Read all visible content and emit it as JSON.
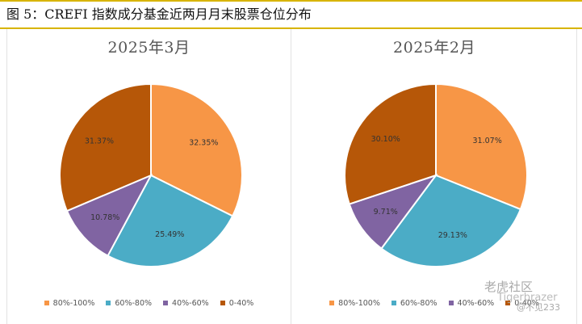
{
  "figure_title": "图 5：CREFI 指数成分基金近两月月末股票仓位分布",
  "legend": [
    {
      "label": "80%-100%",
      "color": "#F79646"
    },
    {
      "label": "60%-80%",
      "color": "#4BACC6"
    },
    {
      "label": "40%-60%",
      "color": "#8064A2"
    },
    {
      "label": "0-40%",
      "color": "#B65708"
    }
  ],
  "watermark": {
    "main": "老虎社区",
    "sub": "@不见233",
    "logo": "Tigerbrazer"
  },
  "chart_data": [
    {
      "type": "pie",
      "title": "2025年3月",
      "categories": [
        "80%-100%",
        "60%-80%",
        "40%-60%",
        "0-40%"
      ],
      "values": [
        32.35,
        25.49,
        10.78,
        31.37
      ],
      "labels": [
        "32.35%",
        "25.49%",
        "10.78%",
        "31.37%"
      ]
    },
    {
      "type": "pie",
      "title": "2025年2月",
      "categories": [
        "80%-100%",
        "60%-80%",
        "40%-60%",
        "0-40%"
      ],
      "values": [
        31.07,
        29.13,
        9.71,
        30.1
      ],
      "labels": [
        "31.07%",
        "29.13%",
        "9.71%",
        "30.10%"
      ]
    }
  ]
}
